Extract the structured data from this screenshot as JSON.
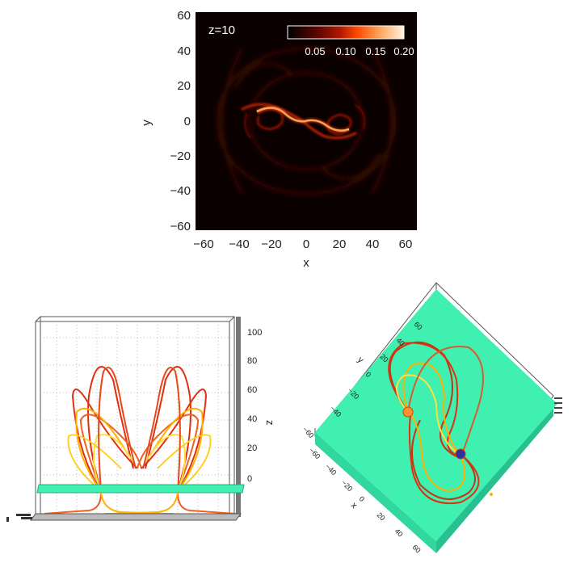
{
  "top_panel": {
    "label": "z=10",
    "x_axis_label": "x",
    "y_axis_label": "y",
    "x_ticks": [
      "−60",
      "−40",
      "−20",
      "0",
      "20",
      "40",
      "60"
    ],
    "y_ticks": [
      "60",
      "40",
      "20",
      "0",
      "−20",
      "−40",
      "−60"
    ],
    "colorbar_ticks": [
      "0.05",
      "0.10",
      "0.15",
      "0.20"
    ],
    "colormap": [
      "#000000",
      "#3a0000",
      "#7a0a00",
      "#c02000",
      "#ff5a10",
      "#ffb070",
      "#fff2d8"
    ]
  },
  "bottom_left_panel": {
    "z_axis_label": "z",
    "z_ticks": [
      "100",
      "80",
      "60",
      "40",
      "20",
      "0"
    ],
    "plane_color": "#40f0b0",
    "line_colors": [
      "#e03010",
      "#f06020",
      "#ffb000",
      "#ffe040"
    ]
  },
  "bottom_right_panel": {
    "y_axis_label": "y",
    "x_axis_label": "x",
    "y_ticks": [
      "60",
      "40",
      "20",
      "0",
      "−20",
      "−40"
    ],
    "x_ticks": [
      "−60",
      "−40",
      "−20",
      "0",
      "20",
      "40",
      "60"
    ],
    "left_ticks": [
      "−60"
    ],
    "plane_color": "#40f0b0"
  }
}
